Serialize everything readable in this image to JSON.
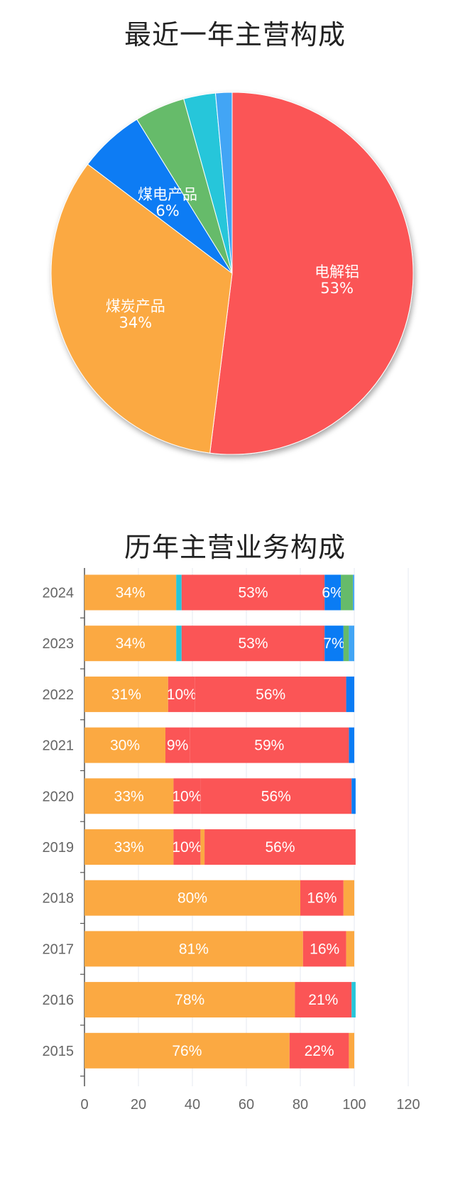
{
  "colors": {
    "煤炭产品": "#FBA942",
    "煤电产品": "#0A7CF4",
    "电解铝": "#FB5556",
    "green": "#66BB6A",
    "cyan": "#26C6DA",
    "lightblue": "#42A5F5"
  },
  "chart_data": [
    {
      "type": "pie",
      "title": "最近一年主营构成",
      "slices": [
        {
          "name": "电解铝",
          "value": 53,
          "label": "电解铝",
          "pct": "53%",
          "color": "#FB5556",
          "show_label": true
        },
        {
          "name": "煤炭产品",
          "value": 34,
          "label": "煤炭产品",
          "pct": "34%",
          "color": "#FBA942",
          "show_label": true
        },
        {
          "name": "煤电产品",
          "value": 6,
          "label": "煤电产品",
          "pct": "6%",
          "color": "#0A7CF4",
          "show_label": true
        },
        {
          "name": "",
          "value": 4.6,
          "label": "",
          "pct": "",
          "color": "#66BB6A",
          "show_label": false
        },
        {
          "name": "",
          "value": 2.9,
          "label": "",
          "pct": "",
          "color": "#26C6DA",
          "show_label": false
        },
        {
          "name": "",
          "value": 1.5,
          "label": "",
          "pct": "",
          "color": "#42A5F5",
          "show_label": false
        }
      ]
    },
    {
      "type": "bar",
      "stacked": true,
      "orientation": "horizontal",
      "title": "历年主营业务构成",
      "categories": [
        "2024",
        "2023",
        "2022",
        "2021",
        "2020",
        "2019",
        "2018",
        "2017",
        "2016",
        "2015"
      ],
      "xlim": [
        0,
        120
      ],
      "xticks": [
        "0",
        "20",
        "40",
        "60",
        "80",
        "100",
        "120"
      ],
      "grid": true,
      "rows": [
        [
          {
            "v": 34,
            "c": "#FBA942",
            "t": "34%"
          },
          {
            "v": 2,
            "c": "#26C6DA",
            "t": ""
          },
          {
            "v": 53,
            "c": "#FB5556",
            "t": "53%"
          },
          {
            "v": 6,
            "c": "#0A7CF4",
            "t": "6%"
          },
          {
            "v": 4.5,
            "c": "#66BB6A",
            "t": ""
          },
          {
            "v": 0.5,
            "c": "#42A5F5",
            "t": ""
          }
        ],
        [
          {
            "v": 34,
            "c": "#FBA942",
            "t": "34%"
          },
          {
            "v": 2,
            "c": "#26C6DA",
            "t": ""
          },
          {
            "v": 53,
            "c": "#FB5556",
            "t": "53%"
          },
          {
            "v": 7,
            "c": "#0A7CF4",
            "t": "7%"
          },
          {
            "v": 2,
            "c": "#66BB6A",
            "t": ""
          },
          {
            "v": 2,
            "c": "#42A5F5",
            "t": ""
          }
        ],
        [
          {
            "v": 31,
            "c": "#FBA942",
            "t": "31%"
          },
          {
            "v": 10,
            "c": "#FB5556",
            "t": "10%"
          },
          {
            "v": 56,
            "c": "#FB5556",
            "t": "56%"
          },
          {
            "v": 3,
            "c": "#0A7CF4",
            "t": ""
          }
        ],
        [
          {
            "v": 30,
            "c": "#FBA942",
            "t": "30%"
          },
          {
            "v": 9,
            "c": "#FB5556",
            "t": "9%"
          },
          {
            "v": 59,
            "c": "#FB5556",
            "t": "59%"
          },
          {
            "v": 2,
            "c": "#0A7CF4",
            "t": ""
          }
        ],
        [
          {
            "v": 33,
            "c": "#FBA942",
            "t": "33%"
          },
          {
            "v": 10,
            "c": "#FB5556",
            "t": "10%"
          },
          {
            "v": 56,
            "c": "#FB5556",
            "t": "56%"
          },
          {
            "v": 1.5,
            "c": "#0A7CF4",
            "t": ""
          }
        ],
        [
          {
            "v": 33,
            "c": "#FBA942",
            "t": "33%"
          },
          {
            "v": 10,
            "c": "#FB5556",
            "t": "10%"
          },
          {
            "v": 1.5,
            "c": "#FBA942",
            "t": ""
          },
          {
            "v": 56,
            "c": "#FB5556",
            "t": "56%"
          }
        ],
        [
          {
            "v": 80,
            "c": "#FBA942",
            "t": "80%"
          },
          {
            "v": 16,
            "c": "#FB5556",
            "t": "16%"
          },
          {
            "v": 4,
            "c": "#FBA942",
            "t": ""
          }
        ],
        [
          {
            "v": 81,
            "c": "#FBA942",
            "t": "81%"
          },
          {
            "v": 16,
            "c": "#FB5556",
            "t": "16%"
          },
          {
            "v": 3,
            "c": "#FBA942",
            "t": ""
          }
        ],
        [
          {
            "v": 78,
            "c": "#FBA942",
            "t": "78%"
          },
          {
            "v": 21,
            "c": "#FB5556",
            "t": "21%"
          },
          {
            "v": 1.5,
            "c": "#26C6DA",
            "t": ""
          }
        ],
        [
          {
            "v": 76,
            "c": "#FBA942",
            "t": "76%"
          },
          {
            "v": 22,
            "c": "#FB5556",
            "t": "22%"
          },
          {
            "v": 2,
            "c": "#FBA942",
            "t": ""
          }
        ]
      ]
    }
  ]
}
